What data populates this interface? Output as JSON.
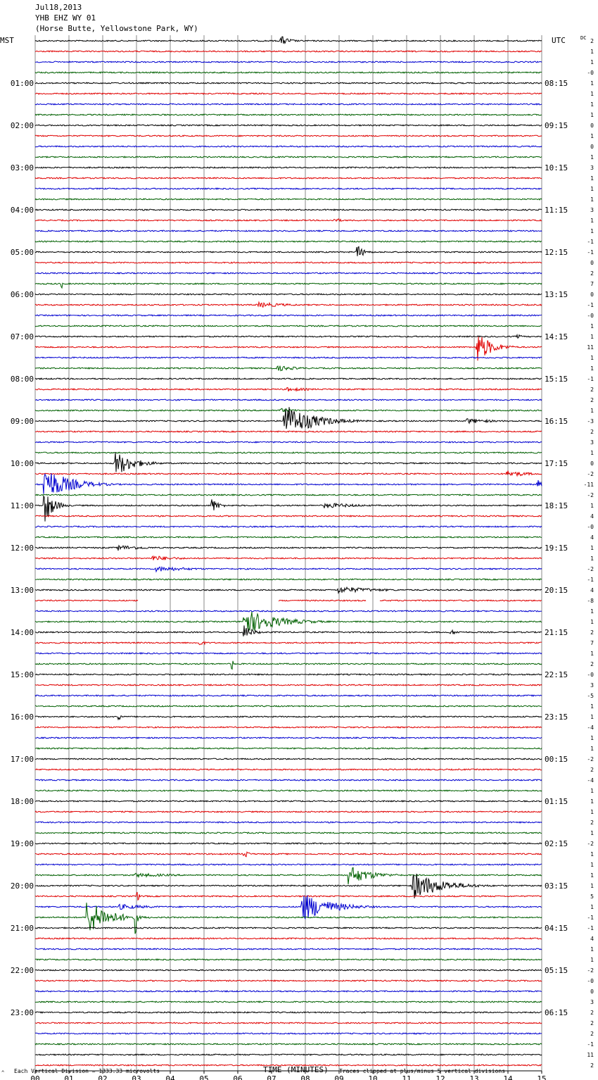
{
  "header": {
    "line1": "Jul18,2013",
    "line2": "YHB EHZ WY 01",
    "line3": "(Horse Butte, Yellowstone Park, WY)"
  },
  "chart_data": {
    "type": "line",
    "subtype": "helicorder",
    "left_axis_label": "MST",
    "right_axis_label": "UTC",
    "dc_label": "DC",
    "xlabel": "TIME (MINUTES)",
    "x_ticks": [
      "00",
      "01",
      "02",
      "03",
      "04",
      "05",
      "06",
      "07",
      "08",
      "09",
      "10",
      "11",
      "12",
      "13",
      "14",
      "15"
    ],
    "xlim": [
      0,
      15
    ],
    "left_hour_labels": [
      "",
      "01:00",
      "02:00",
      "03:00",
      "04:00",
      "05:00",
      "06:00",
      "07:00",
      "08:00",
      "09:00",
      "10:00",
      "11:00",
      "12:00",
      "13:00",
      "14:00",
      "15:00",
      "16:00",
      "17:00",
      "18:00",
      "19:00",
      "20:00",
      "21:00",
      "22:00",
      "23:00"
    ],
    "right_hour_labels": [
      "",
      "08:15",
      "09:15",
      "10:15",
      "11:15",
      "12:15",
      "13:15",
      "14:15",
      "15:15",
      "16:15",
      "17:15",
      "18:15",
      "19:15",
      "20:15",
      "21:15",
      "22:15",
      "23:15",
      "00:15",
      "01:15",
      "02:15",
      "03:15",
      "04:15",
      "05:15",
      "06:15"
    ],
    "dc_offsets": [
      "2",
      "1",
      "1",
      "-0",
      "1",
      "1",
      "1",
      "1",
      "0",
      "1",
      "0",
      "1",
      "3",
      "1",
      "1",
      "1",
      "3",
      "1",
      "1",
      "-1",
      "-1",
      "0",
      "2",
      "7",
      "0",
      "-1",
      "-0",
      "1",
      "1",
      "11",
      "1",
      "1",
      "-1",
      "2",
      "2",
      "1",
      "-3",
      "2",
      "3",
      "1",
      "0",
      "-2",
      "-11",
      "-2",
      "1",
      "4",
      "-0",
      "4",
      "1",
      "1",
      "-2",
      "-1",
      "4",
      "-8",
      "1",
      "1",
      "2",
      "7",
      "1",
      "2",
      "-0",
      "3",
      "-5",
      "1",
      "1",
      "-4",
      "1",
      "1",
      "-2",
      "2",
      "-4",
      "1",
      "1",
      "1",
      "2",
      "1",
      "-2",
      "1",
      "1",
      "1",
      "1",
      "5",
      "1",
      "-1",
      "-1",
      "4",
      "1",
      "1",
      "-2",
      "-0",
      "0",
      "3",
      "2",
      "2",
      "2",
      "-1",
      "11",
      "2"
    ],
    "trace_colors": [
      "#000000",
      "#e00000",
      "#0000d0",
      "#006000"
    ],
    "traces_per_hour": 4,
    "minutes_per_trace": 15,
    "events": [
      {
        "trace": 0,
        "minute": 7.3,
        "amplitude": 7,
        "width": 0.5
      },
      {
        "trace": 17,
        "minute": 8.9,
        "amplitude": 4,
        "width": 0.3
      },
      {
        "trace": 20,
        "minute": 9.55,
        "amplitude": 10,
        "width": 0.4
      },
      {
        "trace": 23,
        "minute": 0.8,
        "amplitude": 6,
        "width": 0.05
      },
      {
        "trace": 25,
        "minute": 6.6,
        "amplitude": 4,
        "width": 1.8
      },
      {
        "trace": 28,
        "minute": 14.3,
        "amplitude": 3,
        "width": 0.3
      },
      {
        "trace": 29,
        "minute": 13.1,
        "amplitude": 22,
        "width": 0.8
      },
      {
        "trace": 31,
        "minute": 7.2,
        "amplitude": 4,
        "width": 1.2
      },
      {
        "trace": 33,
        "minute": 7.5,
        "amplitude": 3,
        "width": 1.5
      },
      {
        "trace": 35,
        "minute": 7.3,
        "amplitude": 3,
        "width": 1.0
      },
      {
        "trace": 36,
        "minute": 7.4,
        "amplitude": 24,
        "width": 1.6
      },
      {
        "trace": 36,
        "minute": 12.8,
        "amplitude": 4,
        "width": 1.5
      },
      {
        "trace": 40,
        "minute": 2.4,
        "amplitude": 18,
        "width": 1.0
      },
      {
        "trace": 41,
        "minute": 14.0,
        "amplitude": 5,
        "width": 1.2
      },
      {
        "trace": 42,
        "minute": 0.3,
        "amplitude": 24,
        "width": 1.4
      },
      {
        "trace": 42,
        "minute": 14.9,
        "amplitude": 6,
        "width": 0.3
      },
      {
        "trace": 44,
        "minute": 0.3,
        "amplitude": 24,
        "width": 0.5
      },
      {
        "trace": 44,
        "minute": 5.25,
        "amplitude": 10,
        "width": 0.4
      },
      {
        "trace": 44,
        "minute": 8.6,
        "amplitude": 4,
        "width": 2.0
      },
      {
        "trace": 48,
        "minute": 2.5,
        "amplitude": 4,
        "width": 1.5
      },
      {
        "trace": 49,
        "minute": 3.5,
        "amplitude": 4,
        "width": 1.5
      },
      {
        "trace": 50,
        "minute": 3.6,
        "amplitude": 4,
        "width": 2.0
      },
      {
        "trace": 52,
        "minute": 9.0,
        "amplitude": 5,
        "width": 2.2
      },
      {
        "trace": 55,
        "minute": 6.2,
        "amplitude": 18,
        "width": 1.8
      },
      {
        "trace": 56,
        "minute": 6.2,
        "amplitude": 10,
        "width": 0.5
      },
      {
        "trace": 56,
        "minute": 12.3,
        "amplitude": 4,
        "width": 0.5
      },
      {
        "trace": 57,
        "minute": 4.9,
        "amplitude": 4,
        "width": 0.3
      },
      {
        "trace": 59,
        "minute": 5.85,
        "amplitude": 8,
        "width": 0.05
      },
      {
        "trace": 64,
        "minute": 2.5,
        "amplitude": 12,
        "width": 0.05
      },
      {
        "trace": 77,
        "minute": 6.2,
        "amplitude": 8,
        "width": 0.2
      },
      {
        "trace": 79,
        "minute": 9.3,
        "amplitude": 14,
        "width": 1.2
      },
      {
        "trace": 79,
        "minute": 3.0,
        "amplitude": 3,
        "width": 2.5
      },
      {
        "trace": 80,
        "minute": 11.2,
        "amplitude": 20,
        "width": 1.6
      },
      {
        "trace": 81,
        "minute": 3.05,
        "amplitude": 8,
        "width": 0.05
      },
      {
        "trace": 82,
        "minute": 7.9,
        "amplitude": 22,
        "width": 1.5
      },
      {
        "trace": 82,
        "minute": 2.5,
        "amplitude": 4,
        "width": 1.8
      },
      {
        "trace": 83,
        "minute": 1.55,
        "amplitude": 26,
        "width": 1.2
      },
      {
        "trace": 83,
        "minute": 3.0,
        "amplitude": 24,
        "width": 0.05
      }
    ],
    "gaps": [
      {
        "trace": 53,
        "from": 3.05,
        "to": 7.2
      },
      {
        "trace": 53,
        "from": 9.8,
        "to": 10.2
      }
    ]
  },
  "footer": {
    "left_note": "Each Vertical Division = 1333.33 microvolts",
    "center_label": "TIME (MINUTES)",
    "right_note": "Traces clipped at plus/minus 5 vertical divisions",
    "corner_mark": "^"
  }
}
